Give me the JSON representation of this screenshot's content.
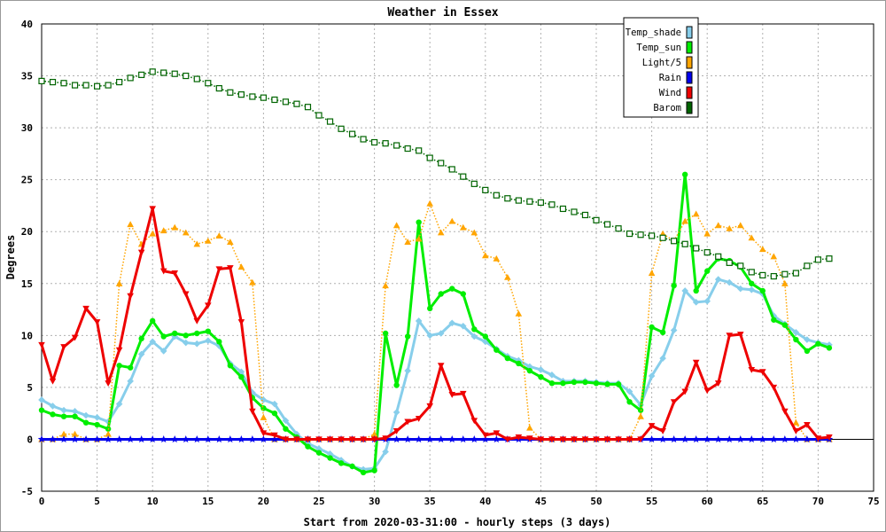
{
  "chart_data": {
    "type": "line",
    "title": "Weather in Essex",
    "xlabel": "Start from 2020-03-31:00 - hourly steps (3 days)",
    "ylabel": "Degrees",
    "xlim": [
      0,
      75
    ],
    "ylim": [
      -5,
      40
    ],
    "xticks": [
      0,
      5,
      10,
      15,
      20,
      25,
      30,
      35,
      40,
      45,
      50,
      55,
      60,
      65,
      70,
      75
    ],
    "yticks": [
      -5,
      0,
      5,
      10,
      15,
      20,
      25,
      30,
      35,
      40
    ],
    "grid": true,
    "legend": "top-right",
    "x": [
      0,
      1,
      2,
      3,
      4,
      5,
      6,
      7,
      8,
      9,
      10,
      11,
      12,
      13,
      14,
      15,
      16,
      17,
      18,
      19,
      20,
      21,
      22,
      23,
      24,
      25,
      26,
      27,
      28,
      29,
      30,
      31,
      32,
      33,
      34,
      35,
      36,
      37,
      38,
      39,
      40,
      41,
      42,
      43,
      44,
      45,
      46,
      47,
      48,
      49,
      50,
      51,
      52,
      53,
      54,
      55,
      56,
      57,
      58,
      59,
      60,
      61,
      62,
      63,
      64,
      65,
      66,
      67,
      68,
      69,
      70,
      71
    ],
    "series": [
      {
        "name": "Temp_shade",
        "color": "#87ceeb",
        "marker": "diamond",
        "style": "solid",
        "width": 3,
        "values": [
          3.8,
          3.2,
          2.8,
          2.7,
          2.3,
          2.1,
          1.7,
          3.4,
          5.6,
          8.2,
          9.4,
          8.5,
          9.9,
          9.3,
          9.2,
          9.5,
          9.0,
          7.3,
          6.5,
          4.5,
          3.8,
          3.4,
          1.8,
          0.5,
          -0.4,
          -0.9,
          -1.4,
          -2.0,
          -2.6,
          -2.9,
          -2.8,
          -1.2,
          2.6,
          6.6,
          11.4,
          10.0,
          10.2,
          11.2,
          10.9,
          9.9,
          9.4,
          8.7,
          8.0,
          7.6,
          7.0,
          6.7,
          6.2,
          5.6,
          5.6,
          5.6,
          5.5,
          5.4,
          5.4,
          4.6,
          3.3,
          6.1,
          7.8,
          10.5,
          14.3,
          13.2,
          13.3,
          15.4,
          15.1,
          14.5,
          14.4,
          14.0,
          11.9,
          11.1,
          10.3,
          9.6,
          9.3,
          9.1
        ]
      },
      {
        "name": "Temp_sun",
        "color": "#00ee00",
        "marker": "circle",
        "style": "solid",
        "width": 3,
        "values": [
          2.8,
          2.4,
          2.2,
          2.2,
          1.6,
          1.4,
          1.0,
          7.1,
          6.9,
          9.7,
          11.4,
          9.9,
          10.2,
          10.0,
          10.2,
          10.4,
          9.4,
          7.1,
          6.0,
          4.0,
          3.0,
          2.5,
          1.0,
          0.2,
          -0.7,
          -1.3,
          -1.8,
          -2.3,
          -2.6,
          -3.2,
          -3.0,
          10.2,
          5.2,
          9.9,
          20.9,
          12.6,
          14.0,
          14.5,
          14.0,
          10.6,
          9.9,
          8.6,
          7.8,
          7.3,
          6.6,
          6.0,
          5.4,
          5.4,
          5.5,
          5.5,
          5.4,
          5.3,
          5.3,
          3.6,
          2.8,
          10.8,
          10.3,
          14.8,
          25.5,
          14.3,
          16.2,
          17.4,
          17.2,
          16.6,
          15.0,
          14.3,
          11.5,
          11.0,
          9.6,
          8.5,
          9.2,
          8.8
        ]
      },
      {
        "name": "Light/5",
        "color": "#ffa500",
        "marker": "triangle-up",
        "style": "dotted",
        "width": 1.5,
        "values": [
          0,
          0,
          0.5,
          0.5,
          0,
          0,
          0.5,
          15,
          20.7,
          18.8,
          19.8,
          20.1,
          20.4,
          19.9,
          18.8,
          19.1,
          19.6,
          19.0,
          16.6,
          15.1,
          2.1,
          0,
          0,
          0,
          0,
          0,
          0,
          0,
          0,
          0,
          0.5,
          14.8,
          20.6,
          19.0,
          19.3,
          22.7,
          19.9,
          21.0,
          20.4,
          19.9,
          17.7,
          17.4,
          15.6,
          12.1,
          1.1,
          0,
          0,
          0,
          0,
          0,
          0,
          0,
          0,
          0,
          2.2,
          16.0,
          19.8,
          19.1,
          21.0,
          21.7,
          19.8,
          20.6,
          20.3,
          20.6,
          19.4,
          18.3,
          17.6,
          15.0,
          1.6,
          0,
          0,
          0
        ]
      },
      {
        "name": "Rain",
        "color": "#0000ee",
        "marker": "star",
        "style": "solid",
        "width": 3,
        "values": [
          0,
          0,
          0,
          0,
          0,
          0,
          0,
          0,
          0,
          0,
          0,
          0,
          0,
          0,
          0,
          0,
          0,
          0,
          0,
          0,
          0,
          0,
          0,
          0,
          0,
          0,
          0,
          0,
          0,
          0,
          0,
          0,
          0,
          0,
          0,
          0,
          0,
          0,
          0,
          0,
          0,
          0,
          0,
          0,
          0,
          0,
          0,
          0,
          0,
          0,
          0,
          0,
          0,
          0,
          0,
          0,
          0,
          0,
          0,
          0,
          0,
          0,
          0,
          0,
          0,
          0,
          0,
          0,
          0,
          0,
          0,
          0
        ]
      },
      {
        "name": "Wind",
        "color": "#ee0000",
        "marker": "triangle-down",
        "style": "solid",
        "width": 3,
        "values": [
          9.1,
          5.6,
          8.9,
          9.8,
          12.6,
          11.3,
          5.4,
          8.6,
          13.8,
          18.0,
          22.2,
          16.2,
          16.0,
          14.0,
          11.4,
          12.9,
          16.4,
          16.5,
          11.3,
          2.7,
          0.6,
          0.4,
          0,
          0,
          0,
          0,
          0,
          0,
          0,
          0,
          0,
          0.1,
          0.8,
          1.7,
          2.0,
          3.2,
          7.1,
          4.3,
          4.4,
          1.8,
          0.4,
          0.6,
          0,
          0.2,
          0.1,
          0,
          0,
          0,
          0,
          0,
          0,
          0,
          0,
          0,
          0,
          1.3,
          0.8,
          3.6,
          4.6,
          7.4,
          4.7,
          5.4,
          10.0,
          10.1,
          6.7,
          6.5,
          5.0,
          2.7,
          0.8,
          1.4,
          0.1,
          0.2
        ]
      },
      {
        "name": "Barom",
        "color": "#006400",
        "marker": "square",
        "style": "dotted",
        "width": 1.5,
        "values": [
          34.5,
          34.4,
          34.3,
          34.1,
          34.1,
          34.0,
          34.1,
          34.4,
          34.8,
          35.1,
          35.4,
          35.3,
          35.2,
          35.0,
          34.7,
          34.3,
          33.8,
          33.4,
          33.2,
          33.0,
          32.9,
          32.7,
          32.5,
          32.3,
          32.0,
          31.2,
          30.6,
          29.9,
          29.4,
          28.9,
          28.6,
          28.5,
          28.3,
          28.0,
          27.8,
          27.1,
          26.6,
          26.0,
          25.3,
          24.6,
          24.0,
          23.5,
          23.2,
          23.0,
          22.9,
          22.8,
          22.6,
          22.2,
          21.9,
          21.6,
          21.1,
          20.7,
          20.3,
          19.8,
          19.7,
          19.6,
          19.4,
          19.1,
          18.8,
          18.4,
          18.0,
          17.6,
          17.0,
          16.7,
          16.1,
          15.8,
          15.7,
          15.9,
          16.0,
          16.7,
          17.3,
          17.4
        ]
      }
    ]
  }
}
